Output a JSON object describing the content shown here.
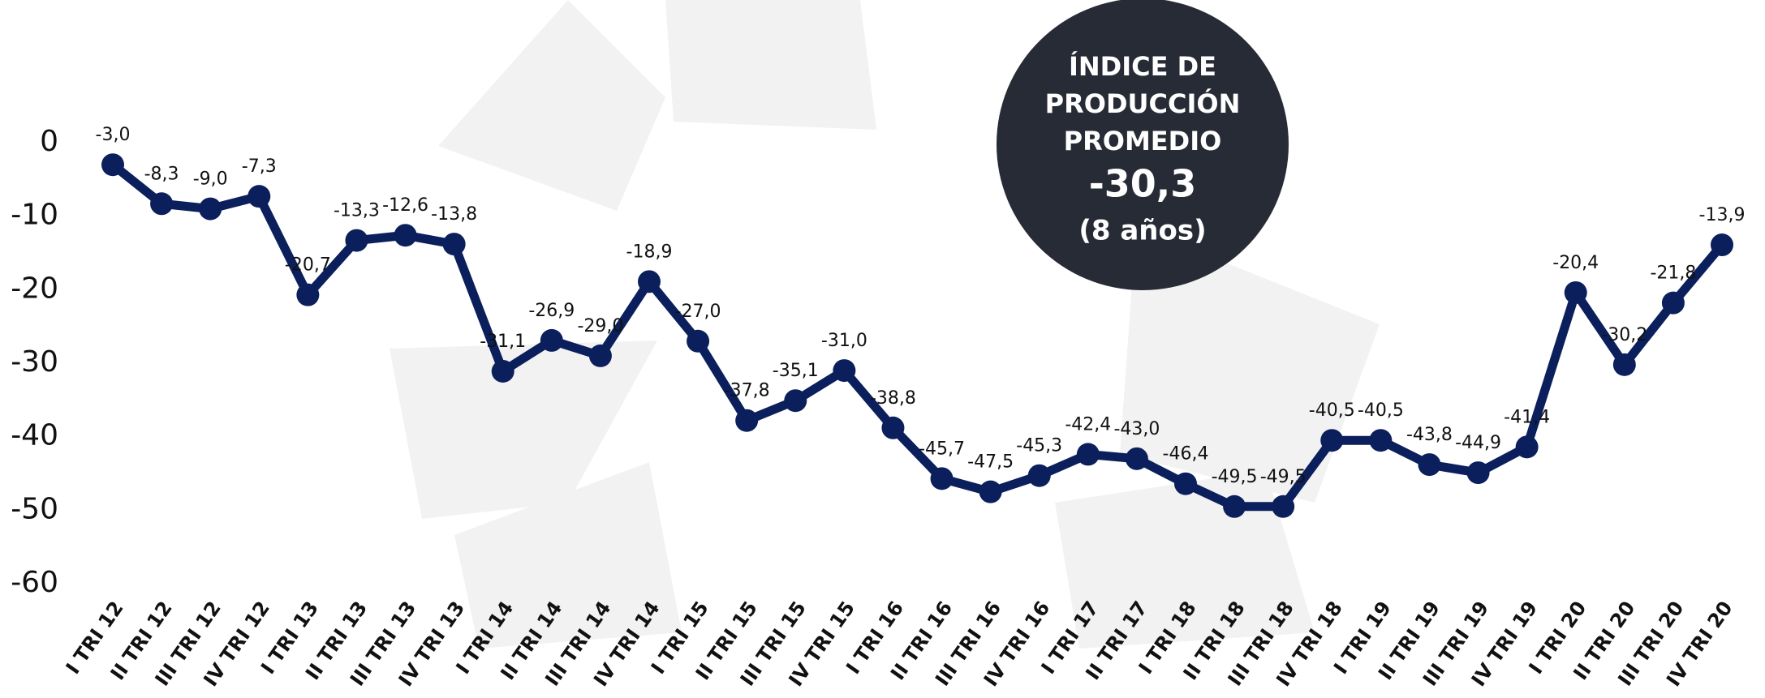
{
  "chart_data": {
    "type": "line",
    "categories": [
      "I TRI 12",
      "II TRI 12",
      "III TRI 12",
      "IV TRI 12",
      "I TRI 13",
      "II TRI 13",
      "III TRI 13",
      "IV TRI 13",
      "I TRI 14",
      "II TRI 14",
      "III TRI 14",
      "IV TRI 14",
      "I TRI 15",
      "II TRI 15",
      "III TRI 15",
      "IV TRI 15",
      "I TRI 16",
      "II TRI 16",
      "III TRI 16",
      "IV TRI 16",
      "I TRI 17",
      "II TRI 17",
      "I TRI 18",
      "II TRI 18",
      "III TRI 18",
      "IV TRI 18",
      "I TRI 19",
      "II TRI 19",
      "III TRI 19",
      "IV TRI 19",
      "I TRI 20",
      "II TRI 20",
      "III TRI 20",
      "IV TRI 20"
    ],
    "values": [
      -3.0,
      -8.3,
      -9.0,
      -7.3,
      -20.7,
      -13.3,
      -12.6,
      -13.8,
      -31.1,
      -26.9,
      -29.0,
      -18.9,
      -27.0,
      -37.8,
      -35.1,
      -31.0,
      -38.8,
      -45.7,
      -47.5,
      -45.3,
      -42.4,
      -43.0,
      -46.4,
      -49.5,
      -49.5,
      -40.5,
      -40.5,
      -43.8,
      -44.9,
      -41.4,
      -20.4,
      -30.2,
      -21.8,
      -13.9
    ],
    "value_labels": [
      "-3,0",
      "-8,3",
      "-9,0",
      "-7,3",
      "-20,7",
      "-13,3",
      "-12,6",
      "-13,8",
      "-31,1",
      "-26,9",
      "-29,0",
      "-18,9",
      "-27,0",
      "-37,8",
      "-35,1",
      "-31,0",
      "-38,8",
      "-45,7",
      "-47,5",
      "-45,3",
      "-42,4",
      "-43,0",
      "-46,4",
      "-49,5",
      "-49,5",
      "-40,5",
      "-40,5",
      "-43,8",
      "-44,9",
      "-41,4",
      "-20,4",
      "-30,2",
      "-21,8",
      "-13,9"
    ],
    "color": "#0b1f5c",
    "ylim": [
      -60,
      0
    ],
    "yticks": [
      0,
      -10,
      -20,
      -30,
      -40,
      -50,
      -60
    ],
    "annotation": {
      "lines": [
        "ÍNDICE DE",
        "PRODUCCIÓN",
        "PROMEDIO"
      ],
      "value": "-30,3",
      "note": "(8 años)"
    }
  }
}
